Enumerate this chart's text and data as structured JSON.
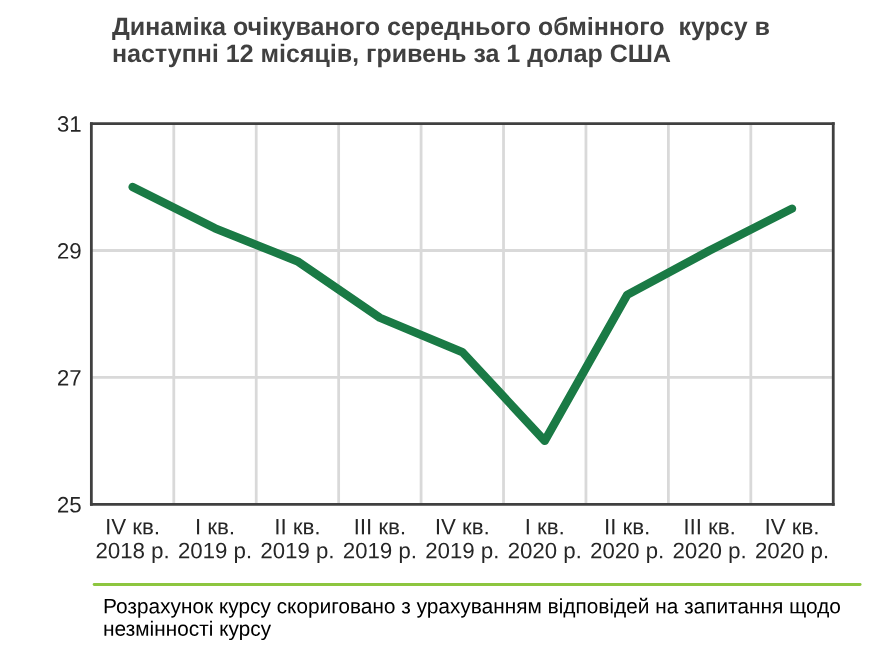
{
  "chart_data": {
    "type": "line",
    "title": "Динаміка очікуваного середнього обмінного  курсу в\nнаступні 12 місяців, гривень за 1 долар США",
    "categories": [
      "IV кв.\n2018 р.",
      "I кв.\n2019 р.",
      "II кв.\n2019 р.",
      "III кв.\n2019 р.",
      "IV кв.\n2019 р.",
      "I кв.\n2020 р.",
      "II кв.\n2020 р.",
      "III кв.\n2020 р.",
      "IV кв.\n2020 р."
    ],
    "series": [
      {
        "color": "#1a7a45",
        "values": [
          30.0,
          29.35,
          28.83,
          27.94,
          27.4,
          26.0,
          28.3,
          29.0,
          29.66
        ]
      }
    ],
    "ylim": [
      25,
      31
    ],
    "yticks": [
      25,
      27,
      29,
      31
    ],
    "grid": true,
    "marker": "none",
    "line_style": "solid",
    "annotations": [
      "Розрахунок курсу скориговано з урахуванням відповідей на запитання щодо незмінності курсу"
    ]
  }
}
